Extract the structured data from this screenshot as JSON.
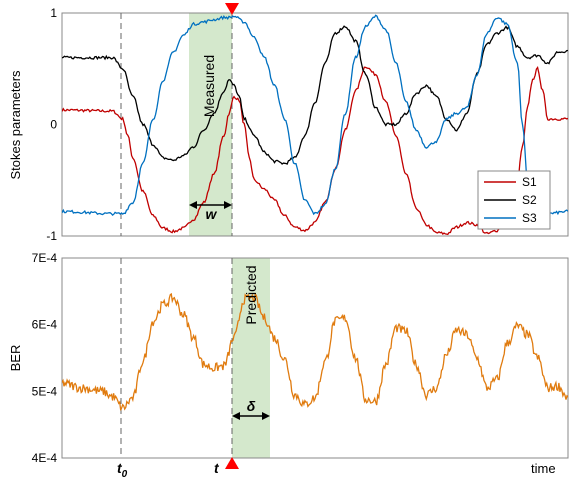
{
  "chart_data": [
    {
      "type": "line",
      "ylabel": "Stokes parameters",
      "ylim": [
        -1,
        1
      ],
      "yticks": [
        "1",
        "0",
        "-1"
      ],
      "legend_position": "bottom-right",
      "series": [
        {
          "name": "S1",
          "color": "#c00000",
          "x": [
            0,
            0.1,
            0.12,
            0.13,
            0.14,
            0.16,
            0.18,
            0.2,
            0.22,
            0.24,
            0.26,
            0.28,
            0.3,
            0.32,
            0.33,
            0.34,
            0.35,
            0.36,
            0.37,
            0.38,
            0.4,
            0.42,
            0.44,
            0.46,
            0.48,
            0.5,
            0.52,
            0.54,
            0.56,
            0.58,
            0.6,
            0.62,
            0.64,
            0.66,
            0.68,
            0.7,
            0.72,
            0.74,
            0.76,
            0.78,
            0.8,
            0.82,
            0.84,
            0.86,
            0.88,
            0.9,
            0.91,
            0.92,
            0.93,
            0.94,
            0.95,
            0.96,
            1.0
          ],
          "y": [
            0.13,
            0.12,
            0.05,
            -0.1,
            -0.3,
            -0.6,
            -0.82,
            -0.93,
            -0.96,
            -0.93,
            -0.85,
            -0.7,
            -0.45,
            -0.1,
            0.1,
            0.25,
            0.22,
            0.0,
            -0.3,
            -0.5,
            -0.58,
            -0.68,
            -0.82,
            -0.92,
            -0.95,
            -0.88,
            -0.7,
            -0.4,
            -0.05,
            0.3,
            0.52,
            0.45,
            0.2,
            -0.1,
            -0.45,
            -0.75,
            -0.9,
            -0.97,
            -0.98,
            -0.92,
            -0.88,
            -0.9,
            -0.98,
            -0.95,
            -0.8,
            -0.5,
            -0.2,
            0.15,
            0.4,
            0.5,
            0.3,
            0.05,
            0.05
          ]
        },
        {
          "name": "S2",
          "color": "#000000",
          "x": [
            0,
            0.1,
            0.12,
            0.14,
            0.16,
            0.18,
            0.2,
            0.22,
            0.24,
            0.26,
            0.28,
            0.3,
            0.32,
            0.33,
            0.34,
            0.35,
            0.36,
            0.38,
            0.4,
            0.42,
            0.44,
            0.46,
            0.48,
            0.5,
            0.52,
            0.54,
            0.56,
            0.58,
            0.6,
            0.62,
            0.64,
            0.66,
            0.68,
            0.7,
            0.72,
            0.74,
            0.76,
            0.78,
            0.8,
            0.82,
            0.84,
            0.86,
            0.88,
            0.9,
            0.92,
            0.94,
            0.96,
            0.98,
            1.0
          ],
          "y": [
            0.6,
            0.6,
            0.5,
            0.25,
            0.0,
            -0.18,
            -0.3,
            -0.32,
            -0.28,
            -0.2,
            -0.05,
            0.1,
            0.3,
            0.4,
            0.35,
            0.25,
            0.05,
            -0.1,
            -0.25,
            -0.33,
            -0.35,
            -0.3,
            -0.1,
            0.2,
            0.55,
            0.82,
            0.88,
            0.75,
            0.45,
            0.15,
            0.0,
            0.0,
            0.1,
            0.28,
            0.35,
            0.25,
            0.05,
            -0.05,
            0.1,
            0.45,
            0.72,
            0.82,
            0.87,
            0.7,
            0.6,
            0.62,
            0.55,
            0.65,
            0.66
          ]
        },
        {
          "name": "S3",
          "color": "#0070c0",
          "x": [
            0,
            0.1,
            0.12,
            0.14,
            0.16,
            0.18,
            0.2,
            0.22,
            0.24,
            0.26,
            0.28,
            0.3,
            0.32,
            0.33,
            0.34,
            0.36,
            0.38,
            0.4,
            0.42,
            0.44,
            0.46,
            0.48,
            0.5,
            0.52,
            0.54,
            0.56,
            0.58,
            0.6,
            0.62,
            0.64,
            0.66,
            0.68,
            0.7,
            0.72,
            0.74,
            0.76,
            0.78,
            0.8,
            0.82,
            0.84,
            0.86,
            0.88,
            0.9,
            0.91,
            0.92,
            0.94,
            0.96,
            1.0
          ],
          "y": [
            -0.78,
            -0.8,
            -0.8,
            -0.7,
            -0.35,
            0.05,
            0.4,
            0.65,
            0.8,
            0.9,
            0.92,
            0.94,
            0.96,
            0.96,
            0.97,
            0.92,
            0.78,
            0.6,
            0.35,
            0.05,
            -0.35,
            -0.68,
            -0.8,
            -0.72,
            -0.4,
            0.1,
            0.6,
            0.88,
            0.97,
            0.85,
            0.55,
            0.2,
            -0.05,
            -0.2,
            -0.15,
            0.05,
            0.1,
            0.15,
            0.45,
            0.82,
            0.96,
            0.9,
            0.55,
            0.0,
            -0.5,
            -0.78,
            -0.8,
            -0.78
          ]
        }
      ]
    },
    {
      "type": "line",
      "xlabel": "time",
      "ylabel": "BER",
      "ylim": [
        0.0004,
        0.0007
      ],
      "yticks": [
        "7E-4",
        "6E-4",
        "5E-4",
        "4E-4"
      ],
      "series": [
        {
          "color": "#e07b0f",
          "x": [
            0,
            0.04,
            0.08,
            0.1,
            0.12,
            0.14,
            0.16,
            0.18,
            0.2,
            0.22,
            0.24,
            0.26,
            0.28,
            0.3,
            0.32,
            0.34,
            0.36,
            0.38,
            0.4,
            0.42,
            0.44,
            0.46,
            0.48,
            0.5,
            0.52,
            0.54,
            0.56,
            0.58,
            0.6,
            0.62,
            0.64,
            0.66,
            0.68,
            0.7,
            0.72,
            0.74,
            0.76,
            0.78,
            0.8,
            0.82,
            0.84,
            0.86,
            0.88,
            0.9,
            0.92,
            0.94,
            0.96,
            0.98,
            1.0
          ],
          "y": [
            0.000512,
            0.000505,
            0.0005,
            0.000492,
            0.000475,
            0.00049,
            0.000545,
            0.000605,
            0.00063,
            0.00064,
            0.000615,
            0.00058,
            0.00054,
            0.000535,
            0.000538,
            0.00058,
            0.000638,
            0.00064,
            0.00061,
            0.00058,
            0.000548,
            0.000495,
            0.00048,
            0.00049,
            0.000545,
            0.000605,
            0.00061,
            0.00055,
            0.000488,
            0.000485,
            0.00054,
            0.000595,
            0.00059,
            0.00054,
            0.000495,
            0.000505,
            0.000555,
            0.000592,
            0.000585,
            0.00055,
            0.000505,
            0.000518,
            0.000572,
            0.000598,
            0.000585,
            0.00055,
            0.000505,
            0.000508,
            0.00049
          ]
        }
      ]
    }
  ],
  "annotations": {
    "measured_label": "Measured",
    "predicted_label": "Predicted",
    "w_label": "w",
    "delta_label": "δ",
    "t0_label": "t",
    "t0_sub": "0",
    "t_label": "t",
    "time_label": "time"
  },
  "colors": {
    "shade": "#d4e8cc",
    "marker": "#ff0000"
  }
}
